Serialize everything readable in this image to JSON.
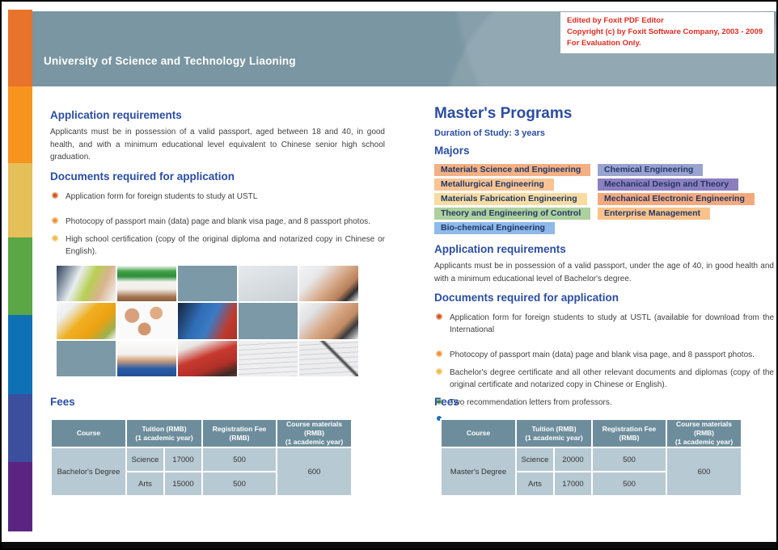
{
  "colors": {
    "accent": "#2b4da1",
    "banner": "#7a96a2",
    "wm": "#e02b20",
    "thbg": "#6d8d9c",
    "tdbg": "#b7c9d3",
    "pilltext": "#1f3864",
    "stripe1": "#e8732a",
    "stripe2": "#f7941e",
    "stripe3": "#e5bf5a",
    "stripe4": "#5ba645",
    "stripe5": "#0e71b5",
    "stripe6": "#3b4f9e",
    "stripe7": "#5c2482"
  },
  "header": {
    "title": "University of Science and Technology Liaoning"
  },
  "watermark": {
    "line1": "Edited by Foxit PDF Editor",
    "line2": "Copyright (c) by Foxit Software Company, 2003 - 2009",
    "line3": "For Evaluation Only."
  },
  "left": {
    "app_req_heading": "Application requirements",
    "app_req_body": "Applicants must be in possession of a valid passport, aged between 18 and 40, in good health, and with a minimum educational level equivalent to Chinese senior high school graduation.",
    "docs_heading": "Documents required for application",
    "bullets": [
      {
        "color": "#d2551f",
        "text": "Application form for foreign students to study at USTL"
      },
      {
        "color": "#ef9137",
        "text": "Photocopy of passport main (data) page and blank visa page, and 8 passport photos."
      },
      {
        "color": "#eebd45",
        "text": "High school certification (copy of the original diploma and notarized copy in Chinese or English)."
      }
    ],
    "fees_heading": "Fees",
    "fees_table": {
      "h_course": "Course",
      "h_tuition_l1": "Tuition (RMB)",
      "h_tuition_l2": "(1 academic year)",
      "h_reg": "Registration Fee (RMB)",
      "h_mat_l1": "Course materials (RMB)",
      "h_mat_l2": "(1 academic year)",
      "course": "Bachelor's Degree",
      "rows": [
        {
          "track": "Science",
          "tuition": "17000",
          "reg": "500"
        },
        {
          "track": "Arts",
          "tuition": "15000",
          "reg": "500"
        }
      ],
      "materials": "600"
    }
  },
  "right": {
    "title": "Master's Programs",
    "duration": "Duration of Study: 3 years",
    "majors_heading": "Majors",
    "majors_left": [
      {
        "label": "Materials Science and Engineering",
        "color": "#f3b084"
      },
      {
        "label": "Metallurgical Engineering",
        "color": "#fac493"
      },
      {
        "label": "Materials Fabrication Engineering",
        "color": "#f7dca2"
      },
      {
        "label": "Theory and Engineering of Control",
        "color": "#aed09f"
      },
      {
        "label": "Bio-chemical Engineering",
        "color": "#8fb9e8"
      }
    ],
    "majors_right": [
      {
        "label": "Chemical Engineering",
        "color": "#9aa3d0"
      },
      {
        "label": "Mechanical Design and Theory",
        "color": "#8d7ec0"
      },
      {
        "label": "Mechanical Electronic Engineering",
        "color": "#f3a97d"
      },
      {
        "label": "Enterprise Management",
        "color": "#fac28b"
      }
    ],
    "app_req_heading": "Application requirements",
    "app_req_body": "Applicants must be in possession of a valid passport, under the age of 40, in good health and with a minimum educational level of Bachelor's degree.",
    "docs_heading": "Documents required for application",
    "bullets": [
      {
        "color": "#d2551f",
        "text": "Application form for foreign students to study at USTL (available for download from the International"
      },
      {
        "color": "#ef9137",
        "text": "Photocopy of passport main (data) page and blank visa page, and 8 passport photos."
      },
      {
        "color": "#eebd45",
        "text": "Bachelor's degree certificate and all other relevant documents and diplomas (copy of the original certificate and notarized copy in Chinese or English)."
      },
      {
        "color": "#5aa646",
        "text": "Two recommendation letters from professors."
      },
      {
        "color": "#1b6fb5",
        "text": ""
      }
    ],
    "fees_heading": "Fees",
    "fees_table": {
      "h_course": "Course",
      "h_tuition_l1": "Tuition (RMB)",
      "h_tuition_l2": "(1 academic year)",
      "h_reg": "Registration Fee (RMB)",
      "h_mat_l1": "Course materials (RMB)",
      "h_mat_l2": "(1 academic year)",
      "course": "Master's Degree",
      "rows": [
        {
          "track": "Science",
          "tuition": "20000",
          "reg": "500"
        },
        {
          "track": "Arts",
          "tuition": "17000",
          "reg": "500"
        }
      ],
      "materials": "600"
    }
  }
}
